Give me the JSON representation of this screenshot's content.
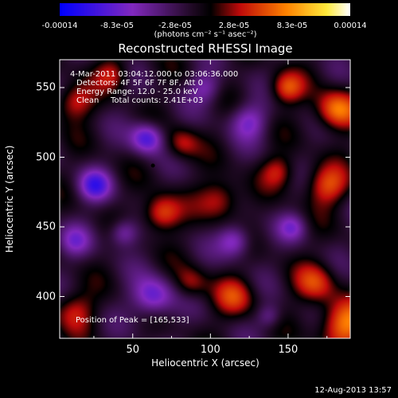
{
  "chart_data": {
    "type": "heatmap",
    "title": "Reconstructed RHESSI Image",
    "xlabel": "Heliocentric X (arcsec)",
    "ylabel": "Heliocentric Y (arcsec)",
    "x_ticks": [
      50,
      100,
      150
    ],
    "y_ticks": [
      400,
      450,
      500,
      550
    ],
    "xlim": [
      3,
      190
    ],
    "ylim": [
      370,
      570
    ],
    "colorbar": {
      "tick_labels": [
        "-0.00014",
        "-8.3e-05",
        "-2.8e-05",
        "2.8e-05",
        "8.3e-05",
        "0.00014"
      ],
      "tick_values": [
        -0.00014,
        -8.3e-05,
        -2.8e-05,
        2.8e-05,
        8.3e-05,
        0.00014
      ],
      "range": [
        -0.00014,
        0.00014
      ],
      "unit_label": "(photons cm⁻² s⁻¹ asec⁻²)"
    },
    "annotations": {
      "time_range": "4-Mar-2011 03:04:12.000 to 03:06:36.000",
      "detectors": "Detectors: 4F 5F 6F 7F 8F, Att 0",
      "energy_range": "Energy Range: 12.0 - 25.0 keV",
      "method": "Clean",
      "total_counts": "Total counts: 2.41E+03",
      "peak": "Position of Peak = [165,533]"
    },
    "peak_position": [
      165,
      533
    ],
    "min_marker_position": [
      63,
      494
    ]
  },
  "footer": {
    "date": "12-Aug-2013 13:57"
  }
}
